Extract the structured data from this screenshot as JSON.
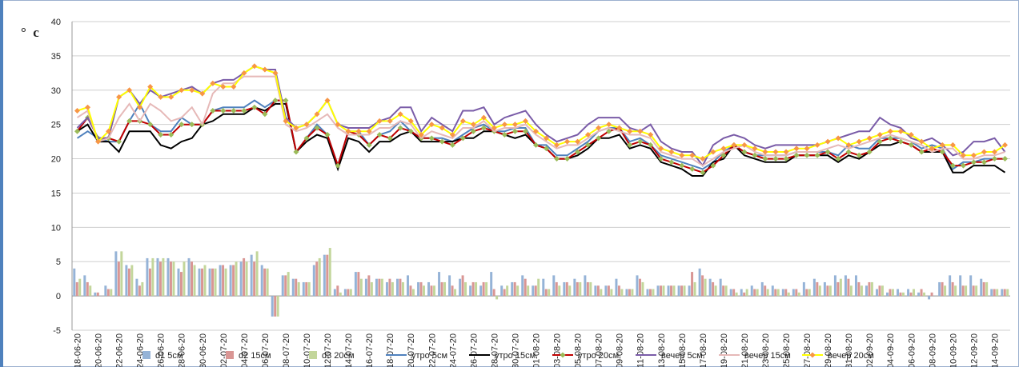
{
  "chart_data": {
    "type": "combo",
    "y_label": "°  c",
    "categories": [
      "18-06-20",
      null,
      "20-06-20",
      null,
      "22-06-20",
      null,
      "24-06-20",
      null,
      "26-06-20",
      null,
      "28-06-20",
      null,
      "30-06-20",
      null,
      "02-07-20",
      null,
      "04-07-20",
      null,
      "06-07-20",
      null,
      "08-07-20",
      null,
      "10-07-20",
      null,
      "12-07-20",
      null,
      "14-07-20",
      null,
      "16-07-20",
      null,
      "18-07-20",
      null,
      "20-07-20",
      null,
      "22-07-20",
      null,
      "24-07-20",
      null,
      "26-07-20",
      null,
      "28-07-20",
      null,
      "30-07-20",
      null,
      "01-08-20",
      null,
      "03-08-20",
      null,
      "05-08-20",
      null,
      "07-08-20",
      null,
      "09-08-20",
      null,
      "11-08-20",
      null,
      "13-08-20",
      null,
      "15-08-20",
      null,
      "17-08-20",
      null,
      "19-08-20",
      null,
      "21-08-20",
      null,
      "23-08-20",
      null,
      "25-08-20",
      null,
      "27-08-20",
      null,
      "29-08-20",
      null,
      "31-08-20",
      null,
      "02-09-20",
      null,
      "04-09-20",
      null,
      "06-09-20",
      null,
      "08-09-20",
      null,
      "10-09-20",
      null,
      "12-09-20",
      null,
      "14-09-20",
      null
    ],
    "ylim": [
      -5,
      40
    ],
    "yticks": [
      -5,
      0,
      5,
      10,
      15,
      20,
      25,
      30,
      35,
      40
    ],
    "grid": true,
    "series": [
      {
        "name": "d1 5см",
        "type": "bar",
        "color": "#95b3d7",
        "values": [
          4,
          3,
          0.5,
          1.5,
          6.5,
          4.5,
          2.5,
          5.5,
          5.5,
          5.5,
          4,
          5.5,
          4,
          4,
          4.5,
          4.5,
          5,
          6,
          4.5,
          -3,
          3,
          2.5,
          2,
          4.5,
          6,
          1,
          1,
          3.5,
          2.5,
          2.5,
          2,
          2.5,
          3,
          2,
          2,
          3.5,
          3,
          2.5,
          1.5,
          1.5,
          3.5,
          1.5,
          2,
          3,
          1.5,
          2.5,
          3,
          2,
          2.5,
          3,
          1.5,
          1.5,
          2.5,
          1,
          3,
          1,
          1.5,
          1.5,
          1.5,
          1.5,
          4,
          2.5,
          2.5,
          1,
          1,
          1.5,
          2,
          1.5,
          1,
          1,
          2,
          2.5,
          2,
          3,
          3,
          3,
          1.5,
          1,
          0.5,
          1,
          1,
          0.5,
          -0.5,
          2,
          3,
          3,
          3,
          2.5,
          1,
          1
        ]
      },
      {
        "name": "d2 15см",
        "type": "bar",
        "color": "#d99694",
        "values": [
          2,
          2,
          0.5,
          1,
          5,
          4,
          1.5,
          4,
          5,
          5,
          3.5,
          5,
          4,
          4,
          4.5,
          4.5,
          5.5,
          5,
          4,
          -3,
          3,
          2.5,
          2,
          5,
          6,
          1.5,
          1,
          3.5,
          3,
          2.5,
          2.5,
          2.5,
          1.5,
          2,
          1.5,
          2,
          1.5,
          3,
          2,
          2,
          1,
          1,
          2,
          2.5,
          1.5,
          1,
          2,
          2,
          2,
          2,
          1.5,
          1.5,
          1.5,
          1,
          2.5,
          1,
          1.5,
          1.5,
          1.5,
          3.5,
          3,
          2,
          1.5,
          1,
          0.5,
          1,
          1.5,
          1,
          1,
          1,
          1,
          2,
          1.5,
          2,
          2.5,
          2,
          2,
          1.5,
          1,
          0.5,
          0.5,
          1,
          0.5,
          2,
          2,
          1.5,
          1.5,
          2,
          1,
          1
        ]
      },
      {
        "name": "d3 20см",
        "type": "bar",
        "color": "#c3d69b",
        "values": [
          2.5,
          1.5,
          0,
          1,
          6.5,
          4.5,
          2,
          5.5,
          5.5,
          5,
          5,
          4.5,
          4.5,
          4,
          4,
          5,
          5,
          6.5,
          4,
          -3,
          3.5,
          2,
          2,
          5.5,
          7,
          0.5,
          1,
          2.5,
          2,
          2.5,
          2,
          2,
          1,
          1.5,
          1.5,
          2,
          1,
          2,
          2,
          2,
          -0.5,
          1.5,
          1.5,
          1.5,
          2.5,
          1,
          1.5,
          1.5,
          2,
          2,
          1,
          1,
          1,
          1,
          2,
          1,
          1.5,
          1.5,
          1.5,
          2,
          2.5,
          1.5,
          1.5,
          0.5,
          1,
          1,
          1,
          1,
          0.5,
          0.5,
          1,
          1.5,
          1.5,
          2.5,
          1.5,
          1.5,
          2,
          1.5,
          1,
          0.5,
          1,
          0.5,
          0,
          1.5,
          1.5,
          1.5,
          1.5,
          2,
          1,
          1
        ]
      },
      {
        "name": "утро 5см",
        "type": "line",
        "color": "#4f81bd",
        "values": [
          23,
          24,
          23,
          22.5,
          22.5,
          25.5,
          28,
          25,
          24,
          24,
          26,
          25,
          25,
          27,
          27.5,
          27.5,
          27.5,
          28.5,
          27.5,
          28.5,
          28.5,
          21,
          23,
          25,
          23.5,
          19,
          24,
          24,
          22,
          23.5,
          24,
          25.5,
          24,
          23,
          23,
          23,
          22.5,
          23.5,
          24.5,
          25,
          24,
          24,
          24.5,
          24.5,
          22,
          22,
          20.5,
          20.5,
          21.5,
          22.5,
          24,
          24.5,
          24.5,
          22.5,
          23,
          22,
          20.5,
          20,
          19.5,
          19,
          18.5,
          19.5,
          21,
          22,
          21,
          20.5,
          20.5,
          20.5,
          20.5,
          21,
          21,
          21,
          21,
          20.5,
          22,
          21.5,
          21.5,
          23,
          23,
          23,
          22.5,
          21.5,
          22,
          21.5,
          18.5,
          19.5,
          19.5,
          20,
          20,
          20
        ]
      },
      {
        "name": "утро 15см",
        "type": "line",
        "color": "#000000",
        "values": [
          24,
          25,
          22.5,
          22.5,
          21,
          24,
          24,
          24,
          22,
          21.5,
          22.5,
          23,
          25,
          25.5,
          26.5,
          26.5,
          26.5,
          27.5,
          27,
          28,
          28,
          21,
          22.5,
          23.5,
          23,
          18.5,
          23,
          22.5,
          21,
          22.5,
          22.5,
          23.5,
          24,
          22.5,
          22.5,
          22.5,
          22.5,
          23,
          23,
          24,
          24,
          23.5,
          23,
          23.5,
          22,
          21.5,
          20,
          20,
          20.5,
          21.5,
          23,
          23,
          23.5,
          21.5,
          22,
          21.5,
          19.5,
          19,
          18.5,
          17.5,
          17.5,
          19.5,
          20,
          22,
          20.5,
          20,
          19.5,
          19.5,
          19.5,
          20.5,
          20.5,
          20.5,
          20.5,
          19.5,
          20.5,
          20,
          21,
          22,
          22,
          22.5,
          22,
          21,
          21,
          21,
          18,
          18,
          19,
          19,
          19,
          18
        ]
      },
      {
        "name": "утро 20см",
        "type": "line",
        "color": "#c00000",
        "marker_color": "#9bbb59",
        "values": [
          24,
          26,
          23,
          23,
          22.5,
          25.5,
          25.5,
          25,
          23.5,
          23.5,
          25,
          25,
          25,
          27,
          27,
          27,
          27,
          27.5,
          26.5,
          28.5,
          28.5,
          21,
          23,
          24.5,
          23.5,
          19,
          24,
          23.5,
          22,
          23.5,
          23,
          24.5,
          24,
          23,
          23,
          22.5,
          22,
          23,
          24,
          24.5,
          24,
          23.5,
          24,
          24,
          22,
          21.5,
          20,
          20,
          21,
          22,
          23,
          24,
          24.5,
          22,
          22.5,
          22,
          20,
          19.5,
          19,
          18.5,
          18,
          19,
          20.5,
          22,
          21,
          20.5,
          20,
          20,
          20,
          20.5,
          20.5,
          20.5,
          21,
          20,
          21,
          20.5,
          21,
          22.5,
          23,
          22.5,
          22,
          21,
          21.5,
          21,
          19,
          19,
          19.5,
          19.5,
          20,
          20
        ]
      },
      {
        "name": "вечер 5см",
        "type": "line",
        "color": "#7a5ca8",
        "values": [
          24.5,
          26,
          23,
          23,
          29,
          30,
          28,
          30,
          29,
          29.5,
          30,
          30.5,
          29.5,
          31,
          31.5,
          31.5,
          32.5,
          33.5,
          33,
          33,
          26,
          24.5,
          25,
          26.5,
          28.5,
          25,
          24.5,
          24.5,
          24.5,
          25.5,
          26,
          27.5,
          27.5,
          24,
          26,
          25,
          24,
          27,
          27,
          27.5,
          25,
          26,
          26.5,
          27,
          25,
          23.5,
          22.5,
          23,
          23.5,
          25,
          26,
          26,
          26,
          24.5,
          24,
          25,
          22.5,
          21.5,
          21,
          21,
          19,
          22,
          23,
          23.5,
          23,
          22,
          21.5,
          22,
          22,
          22,
          22,
          22,
          22.5,
          23,
          23.5,
          24,
          24,
          26,
          25,
          24.5,
          23,
          22.5,
          23,
          22,
          20.5,
          21,
          22.5,
          22.5,
          23,
          21
        ]
      },
      {
        "name": "вечер 15см",
        "type": "line",
        "color": "#e6b9b8",
        "values": [
          26,
          27,
          22.5,
          23,
          26,
          28,
          25.5,
          28,
          27,
          25.5,
          26,
          27.5,
          25,
          29.5,
          31,
          31,
          32,
          32,
          32,
          32,
          25,
          24,
          24.5,
          25.5,
          26.5,
          24.5,
          23.5,
          23.5,
          23.5,
          24.5,
          24.5,
          25.5,
          25,
          23,
          24,
          23.5,
          23,
          24.5,
          24.5,
          25.5,
          24,
          24.5,
          24.5,
          25,
          23.5,
          22.5,
          21.5,
          22,
          22,
          23,
          24,
          24.5,
          24,
          23.5,
          23.5,
          23,
          21,
          20.5,
          20,
          20,
          19,
          20,
          21,
          21.5,
          22,
          21,
          20.5,
          20.5,
          20.5,
          21,
          21,
          21,
          21.5,
          22,
          21.5,
          22,
          22.5,
          23,
          23.5,
          23,
          22.5,
          22,
          21,
          21.5,
          21.5,
          20,
          20,
          20.5,
          20.5,
          21
        ]
      },
      {
        "name": "вечер 20см",
        "type": "line",
        "color": "#ffff00",
        "marker_color": "#f79646",
        "values": [
          27,
          27.5,
          22.5,
          24,
          29,
          30,
          27.5,
          30.5,
          29,
          29,
          30,
          30,
          29.5,
          31,
          30.5,
          30.5,
          32.5,
          33.5,
          33,
          32.5,
          25.5,
          24.5,
          25,
          26.5,
          28.5,
          25,
          24,
          24,
          24,
          25.5,
          25.5,
          26.5,
          25.5,
          23.5,
          25,
          24.5,
          23.5,
          25.5,
          25,
          26,
          24.5,
          25,
          25,
          25.5,
          24,
          23,
          22,
          22.5,
          22.5,
          23.5,
          24.5,
          25,
          24.5,
          24,
          24,
          23.5,
          21.5,
          21,
          20.5,
          20.5,
          20,
          21,
          21.5,
          22,
          22,
          21.5,
          21,
          21,
          21,
          21.5,
          21.5,
          22,
          22.5,
          23,
          22,
          22.5,
          23,
          23.5,
          24,
          24,
          23.5,
          22.5,
          21.5,
          22,
          22,
          20.5,
          20.5,
          21,
          21,
          22
        ]
      }
    ]
  }
}
